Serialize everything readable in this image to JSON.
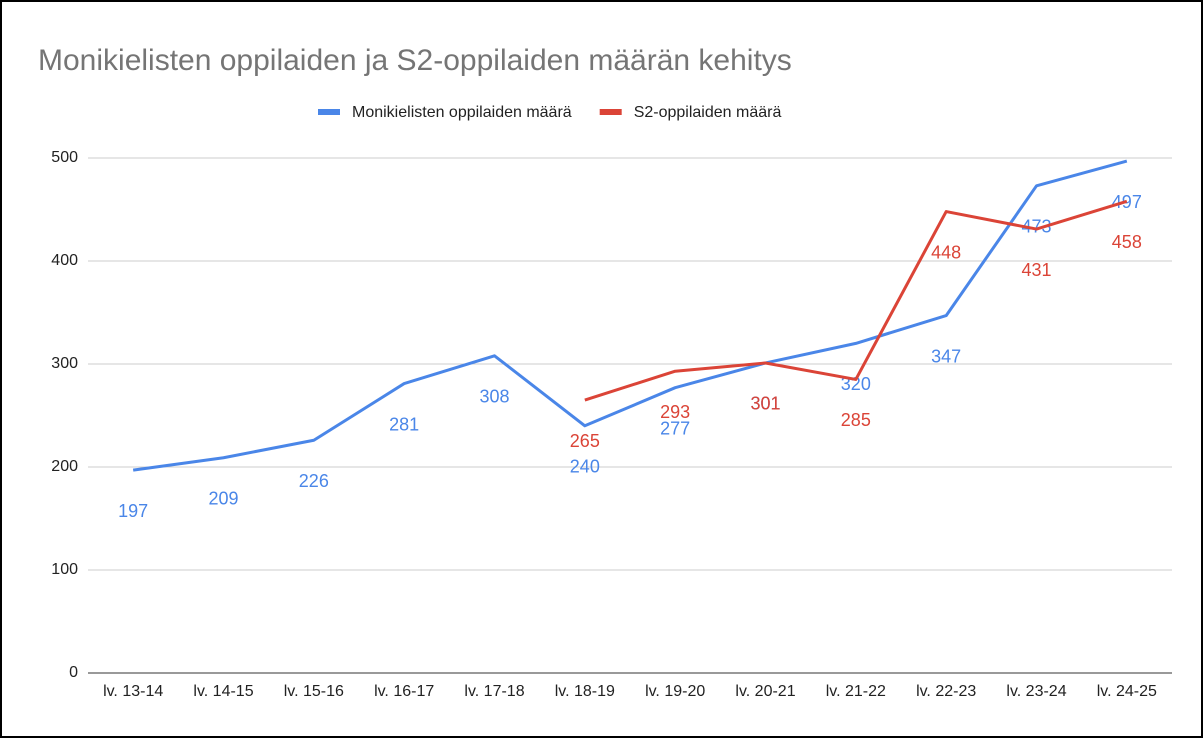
{
  "chart_data": {
    "type": "line",
    "title": "Monikielisten oppilaiden ja S2-oppilaiden määrän kehitys",
    "categories": [
      "lv. 13-14",
      "lv. 14-15",
      "lv. 15-16",
      "lv. 16-17",
      "lv. 17-18",
      "lv. 18-19",
      "lv. 19-20",
      "lv. 20-21",
      "lv. 21-22",
      "lv. 22-23",
      "lv. 23-24",
      "lv. 24-25"
    ],
    "series": [
      {
        "name": "Monikielisten oppilaiden määrä",
        "color": "#4a86e8",
        "values": [
          197,
          209,
          226,
          281,
          308,
          240,
          277,
          301,
          320,
          347,
          473,
          497
        ]
      },
      {
        "name": "S2-oppilaiden määrä",
        "color": "#db4437",
        "values": [
          null,
          null,
          null,
          null,
          null,
          265,
          293,
          301,
          285,
          448,
          431,
          458
        ]
      }
    ],
    "ylim": [
      0,
      500
    ],
    "yticks": [
      0,
      100,
      200,
      300,
      400,
      500
    ],
    "grid": true,
    "legend": "top"
  }
}
